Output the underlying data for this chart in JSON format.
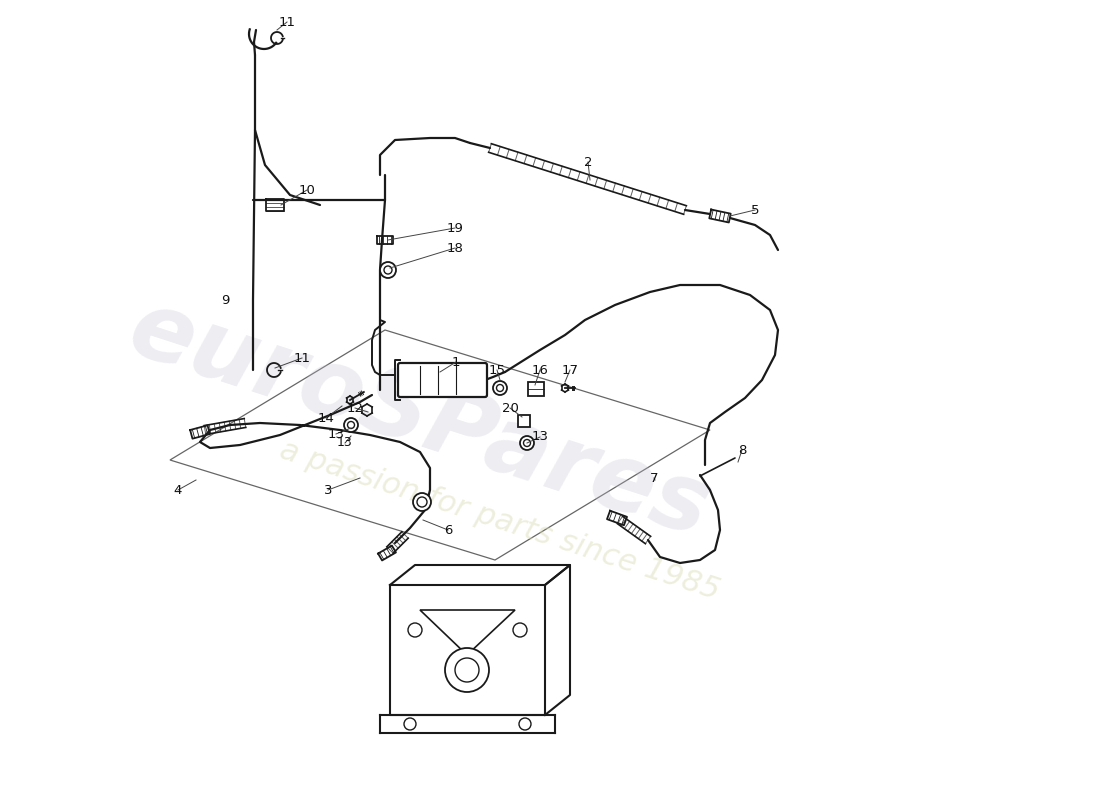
{
  "bg_color": "#ffffff",
  "lc": "#1a1a1a",
  "lw": 1.6,
  "watermark1": "euroSPares",
  "watermark2": "a passion for parts since 1985"
}
